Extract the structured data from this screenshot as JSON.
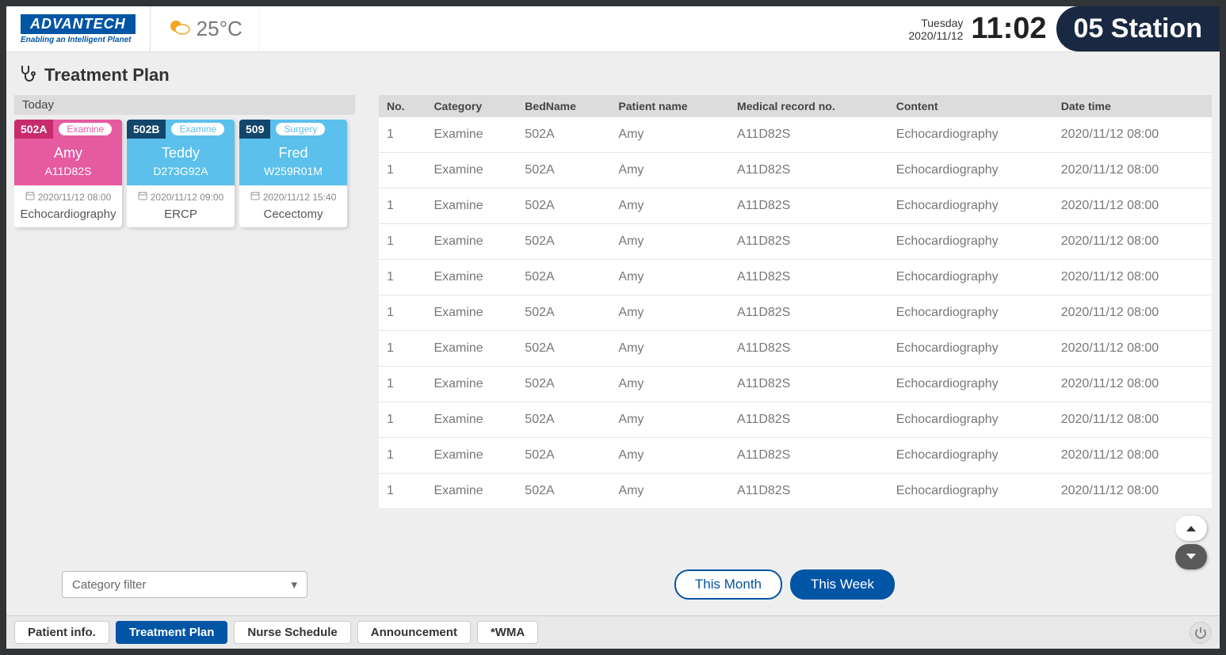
{
  "header": {
    "logo_main": "ADVANTECH",
    "logo_tagline": "Enabling an Intelligent Planet",
    "temperature": "25°C",
    "day": "Tuesday",
    "date": "2020/11/12",
    "time": "11:02",
    "station": "05 Station"
  },
  "page": {
    "title": "Treatment Plan",
    "today_label": "Today"
  },
  "cards": [
    {
      "bed": "502A",
      "tag": "Examine",
      "name": "Amy",
      "record": "A11D82S",
      "datetime": "2020/11/12 08:00",
      "content": "Echocardiography",
      "bed_bg": "#c72b6b",
      "body_bg": "#e55aa0",
      "tag_color": "#e55aa0"
    },
    {
      "bed": "502B",
      "tag": "Examine",
      "name": "Teddy",
      "record": "D273G92A",
      "datetime": "2020/11/12 09:00",
      "content": "ERCP",
      "bed_bg": "#13466b",
      "body_bg": "#5bc0eb",
      "tag_color": "#5bc0eb"
    },
    {
      "bed": "509",
      "tag": "Surgery",
      "name": "Fred",
      "record": "W259R01M",
      "datetime": "2020/11/12 15:40",
      "content": "Cecectomy",
      "bed_bg": "#13466b",
      "body_bg": "#5bc0eb",
      "tag_color": "#5bc0eb"
    }
  ],
  "table": {
    "columns": [
      "No.",
      "Category",
      "BedName",
      "Patient name",
      "Medical record no.",
      "Content",
      "Date time"
    ],
    "rows": [
      [
        "1",
        "Examine",
        "502A",
        "Amy",
        "A11D82S",
        "Echocardiography",
        "2020/11/12 08:00"
      ],
      [
        "1",
        "Examine",
        "502A",
        "Amy",
        "A11D82S",
        "Echocardiography",
        "2020/11/12 08:00"
      ],
      [
        "1",
        "Examine",
        "502A",
        "Amy",
        "A11D82S",
        "Echocardiography",
        "2020/11/12 08:00"
      ],
      [
        "1",
        "Examine",
        "502A",
        "Amy",
        "A11D82S",
        "Echocardiography",
        "2020/11/12 08:00"
      ],
      [
        "1",
        "Examine",
        "502A",
        "Amy",
        "A11D82S",
        "Echocardiography",
        "2020/11/12 08:00"
      ],
      [
        "1",
        "Examine",
        "502A",
        "Amy",
        "A11D82S",
        "Echocardiography",
        "2020/11/12 08:00"
      ],
      [
        "1",
        "Examine",
        "502A",
        "Amy",
        "A11D82S",
        "Echocardiography",
        "2020/11/12 08:00"
      ],
      [
        "1",
        "Examine",
        "502A",
        "Amy",
        "A11D82S",
        "Echocardiography",
        "2020/11/12 08:00"
      ],
      [
        "1",
        "Examine",
        "502A",
        "Amy",
        "A11D82S",
        "Echocardiography",
        "2020/11/12 08:00"
      ],
      [
        "1",
        "Examine",
        "502A",
        "Amy",
        "A11D82S",
        "Echocardiography",
        "2020/11/12 08:00"
      ],
      [
        "1",
        "Examine",
        "502A",
        "Amy",
        "A11D82S",
        "Echocardiography",
        "2020/11/12 08:00"
      ]
    ]
  },
  "filters": {
    "category_placeholder": "Category filter",
    "this_month": "This Month",
    "this_week": "This Week"
  },
  "tabs": {
    "patient_info": "Patient info.",
    "treatment_plan": "Treatment Plan",
    "nurse_schedule": "Nurse Schedule",
    "announcement": "Announcement",
    "wma": "*WMA"
  }
}
